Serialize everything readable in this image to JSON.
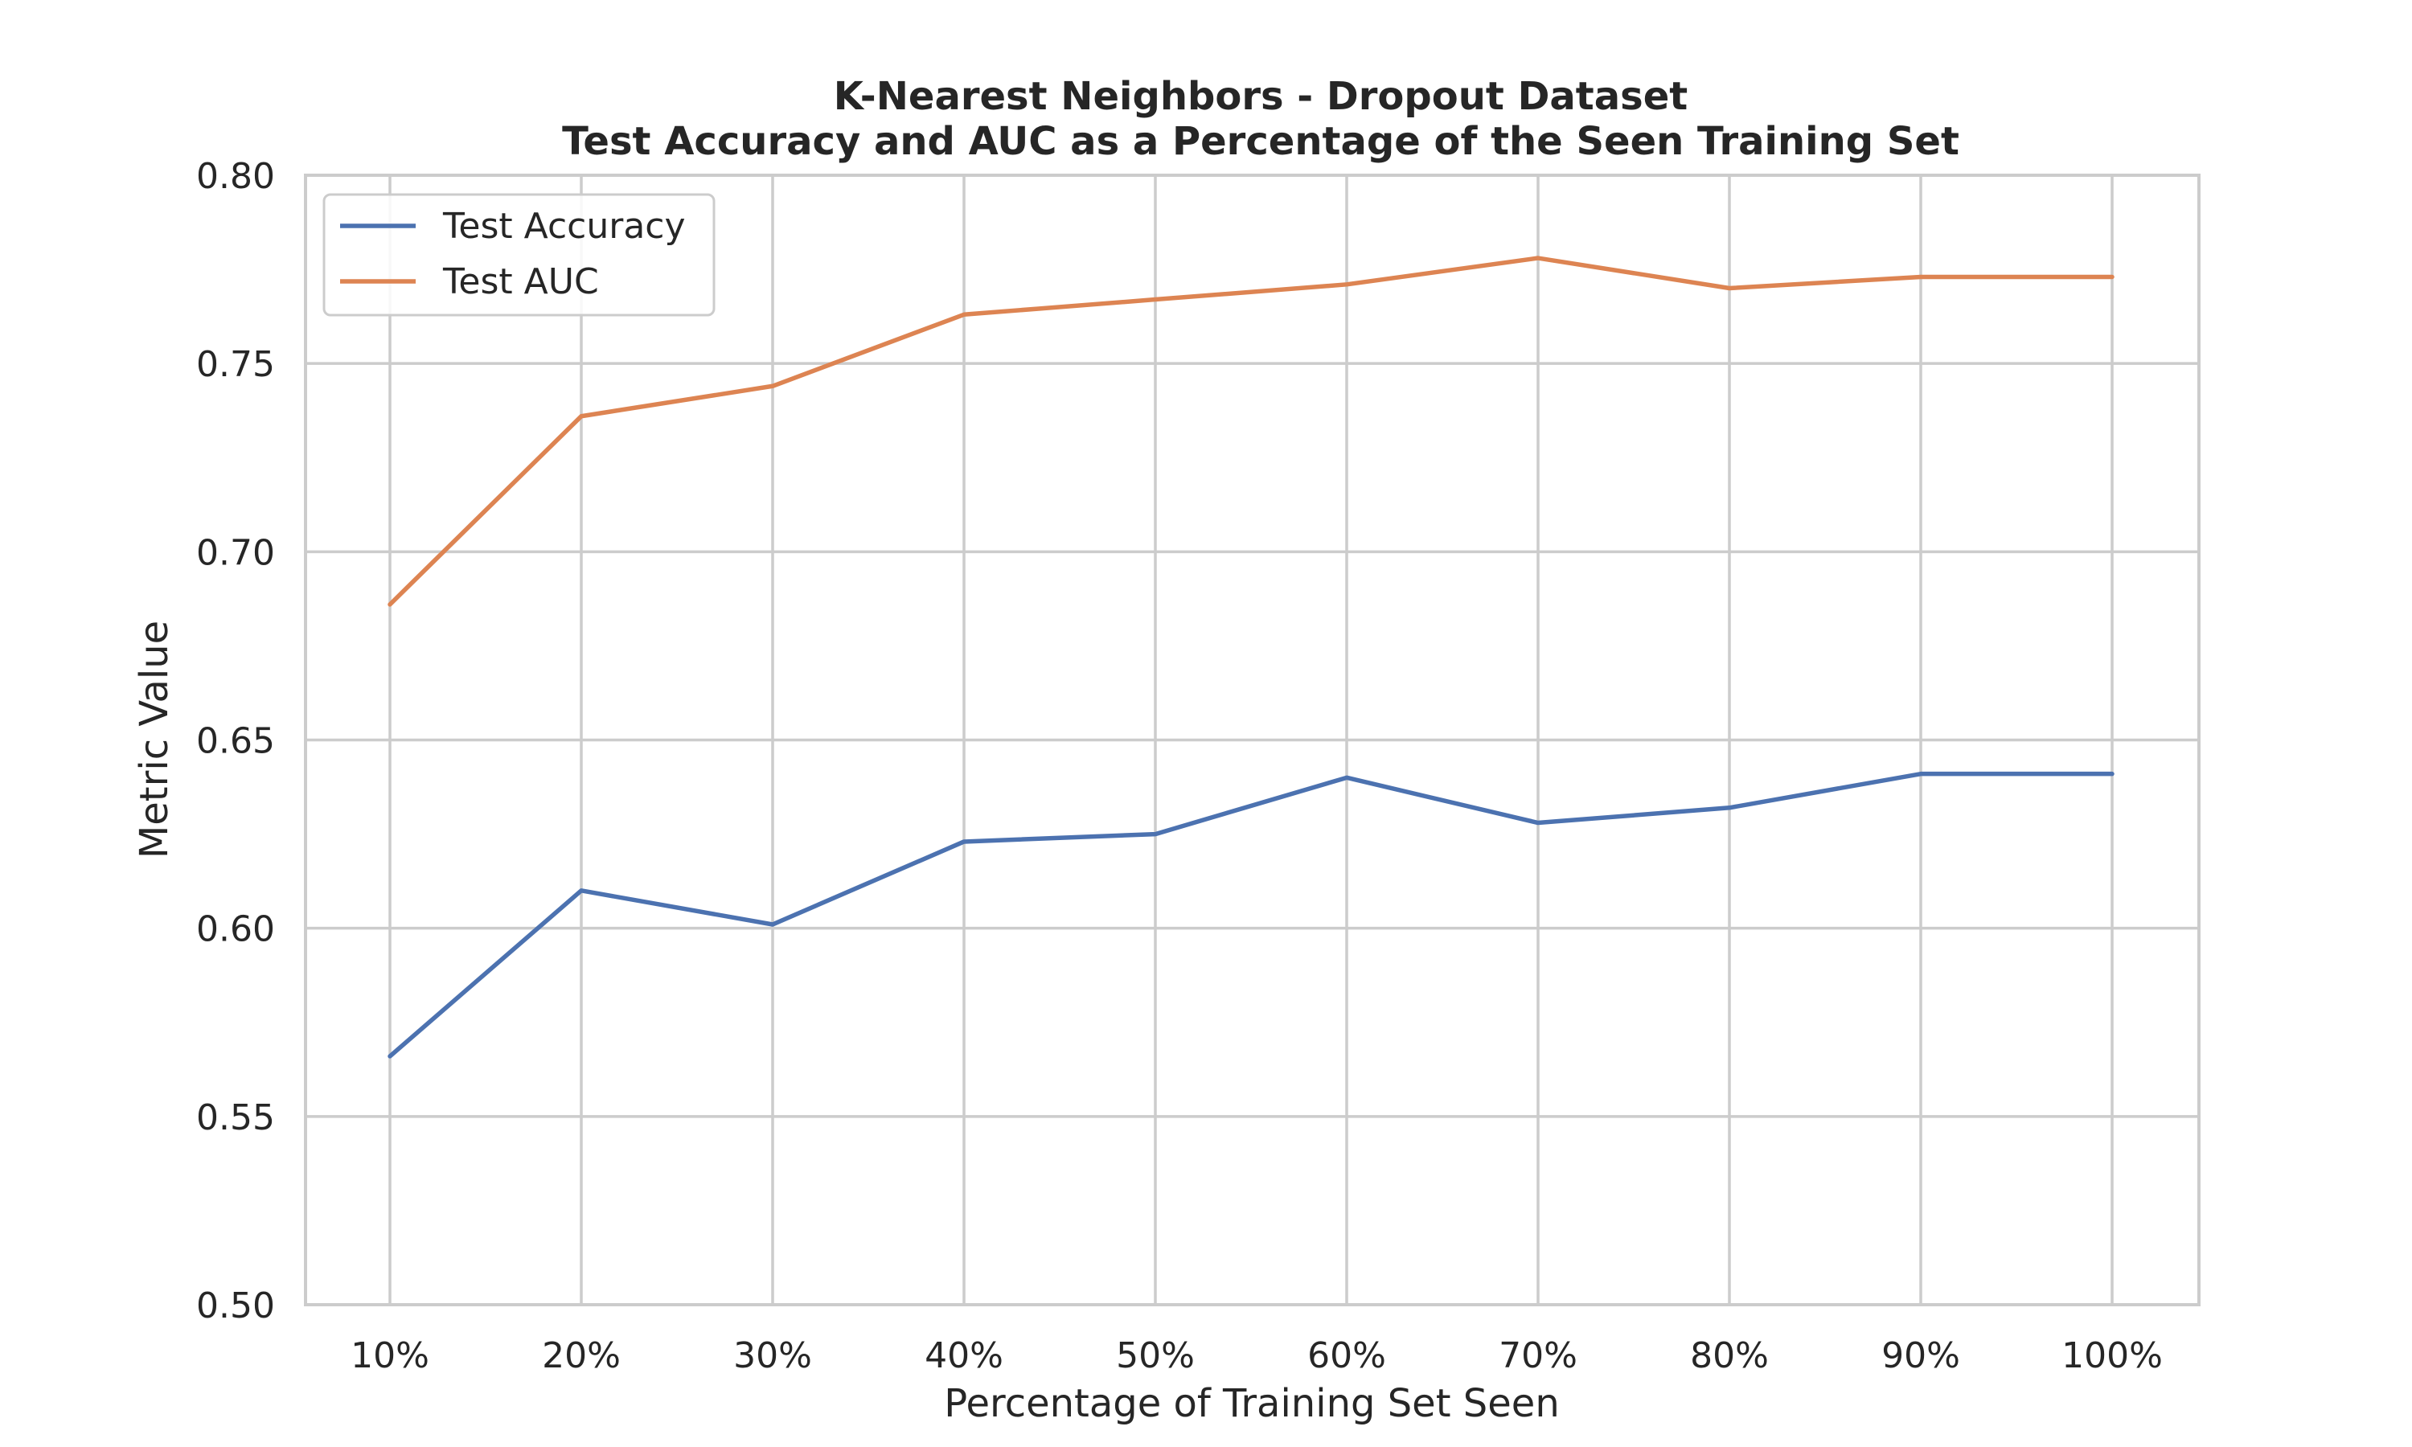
{
  "chart_data": {
    "type": "line",
    "title": "K-Nearest Neighbors - Dropout Dataset",
    "subtitle": "Test Accuracy and AUC as a Percentage of the Seen Training Set",
    "xlabel": "Percentage of Training Set Seen",
    "ylabel": "Metric Value",
    "categories": [
      "10%",
      "20%",
      "30%",
      "40%",
      "50%",
      "60%",
      "70%",
      "80%",
      "90%",
      "100%"
    ],
    "ylim": [
      0.5,
      0.8
    ],
    "yticks": [
      "0.50",
      "0.55",
      "0.60",
      "0.65",
      "0.70",
      "0.75",
      "0.80"
    ],
    "grid": true,
    "legend_position": "top-left",
    "series": [
      {
        "name": "Test Accuracy",
        "color": "#4c72b0",
        "values": [
          0.566,
          0.61,
          0.601,
          0.623,
          0.625,
          0.64,
          0.628,
          0.632,
          0.641,
          0.641
        ]
      },
      {
        "name": "Test AUC",
        "color": "#dd8452",
        "values": [
          0.686,
          0.736,
          0.744,
          0.763,
          0.767,
          0.771,
          0.778,
          0.77,
          0.773,
          0.773
        ]
      }
    ]
  }
}
